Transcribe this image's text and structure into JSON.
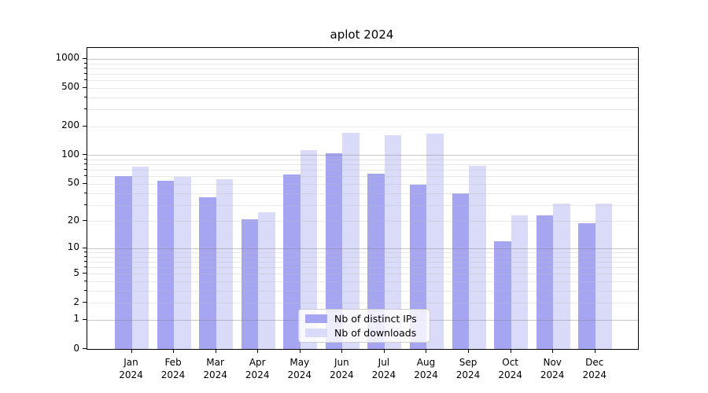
{
  "title": "aplot 2024",
  "chart_data": {
    "type": "bar",
    "title": "aplot 2024",
    "yscale": "log1p",
    "ylim": [
      0,
      1300
    ],
    "grid": true,
    "grid_major_values": [
      1,
      10,
      100,
      1000
    ],
    "yticks": [
      0,
      1,
      2,
      5,
      10,
      20,
      50,
      100,
      200,
      500,
      1000
    ],
    "categories": [
      "Jan",
      "Feb",
      "Mar",
      "Apr",
      "May",
      "Jun",
      "Jul",
      "Aug",
      "Sep",
      "Oct",
      "Nov",
      "Dec"
    ],
    "category_year": "2024",
    "legend_position": "lower-center-inside",
    "series": [
      {
        "name": "Nb of distinct IPs",
        "color": "#a5a5f2",
        "values": [
          60,
          54,
          36,
          21,
          63,
          105,
          64,
          49,
          40,
          12,
          23,
          19
        ]
      },
      {
        "name": "Nb of downloads",
        "color": "#dadaf9",
        "values": [
          76,
          59,
          56,
          25,
          112,
          172,
          163,
          168,
          77,
          23,
          31,
          31
        ]
      }
    ]
  }
}
